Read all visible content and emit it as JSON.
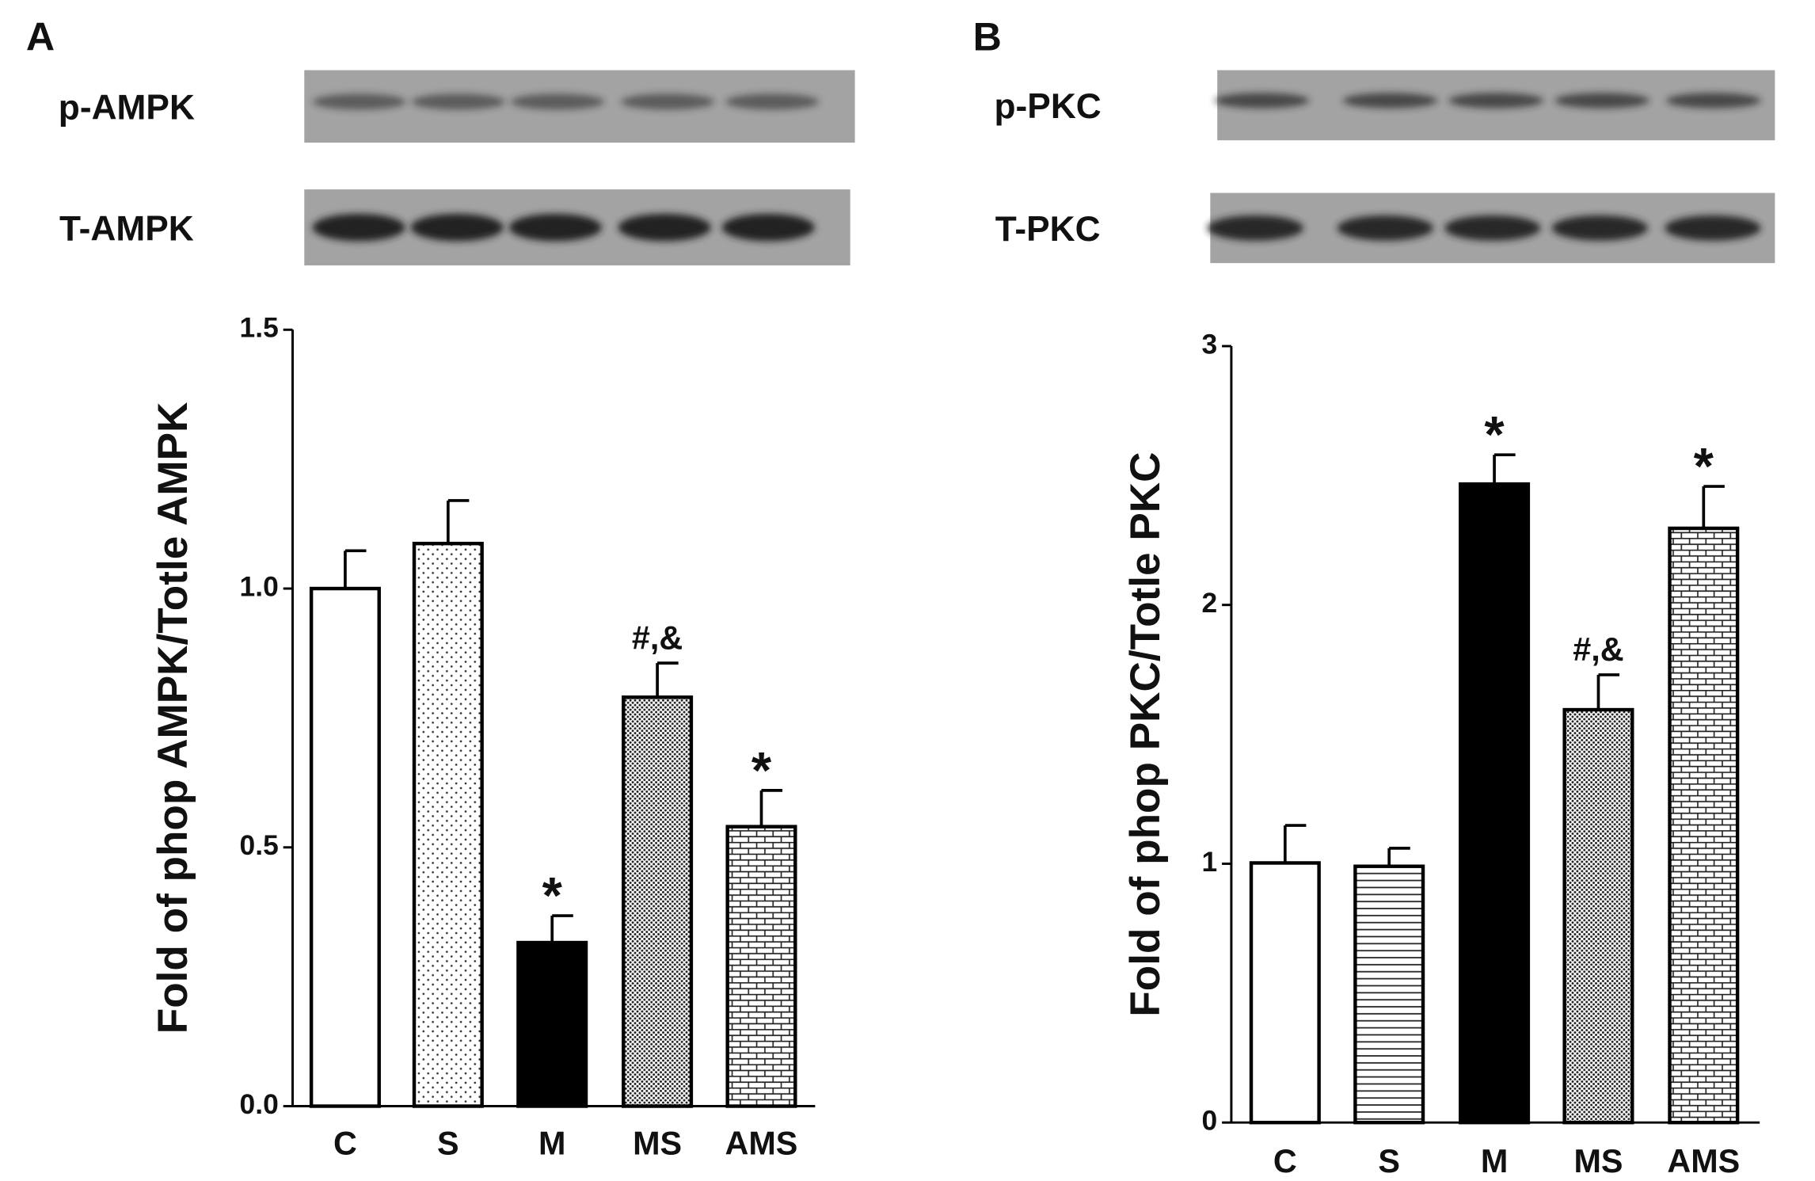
{
  "chart_data": [
    {
      "type": "bar",
      "panel": "A",
      "blots": [
        "p-AMPK",
        "T-AMPK"
      ],
      "ylabel": "Fold of phop AMPK/Totle AMPK",
      "categories": [
        "C",
        "S",
        "M",
        "MS",
        "AMS"
      ],
      "values": [
        1.0,
        1.087,
        0.316,
        0.79,
        0.54
      ],
      "errors": [
        0.073,
        0.083,
        0.052,
        0.066,
        0.07
      ],
      "annotations": [
        null,
        null,
        "*",
        "#,&",
        "*"
      ],
      "patterns": [
        "none",
        "dots",
        "solid",
        "dense-dots",
        "bricks"
      ],
      "ylim": [
        0,
        1.5
      ],
      "yticks": [
        {
          "value": 0,
          "label": "0.0"
        },
        0.5,
        {
          "value": 1,
          "label": "1.0"
        },
        1.5
      ]
    },
    {
      "type": "bar",
      "panel": "B",
      "blots": [
        "p-PKC",
        "T-PKC"
      ],
      "ylabel": "Fold of phop PKC/Totle PKC",
      "categories": [
        "C",
        "S",
        "M",
        "MS",
        "AMS"
      ],
      "values": [
        1.003,
        0.99,
        2.467,
        1.595,
        2.296
      ],
      "errors": [
        0.145,
        0.07,
        0.113,
        0.135,
        0.162
      ],
      "annotations": [
        null,
        null,
        "*",
        "#,&",
        "*"
      ],
      "patterns": [
        "none",
        "hlines",
        "solid",
        "dense-dots",
        "bricks"
      ],
      "ylim": [
        0,
        3
      ],
      "yticks": [
        0,
        1,
        2,
        3
      ]
    }
  ]
}
